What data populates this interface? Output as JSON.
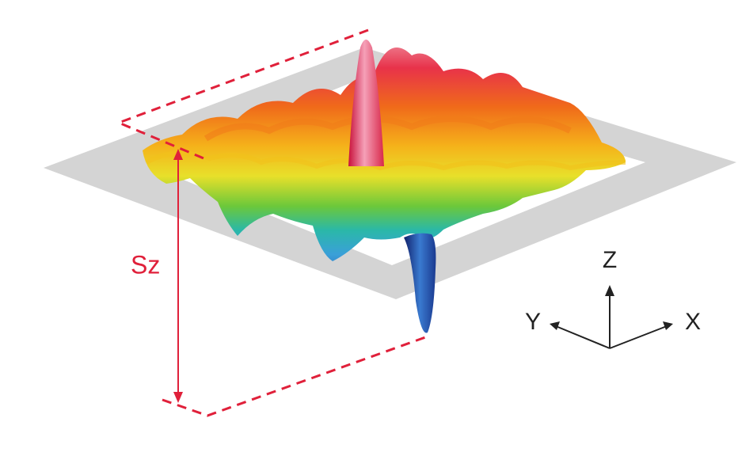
{
  "annotation": {
    "label": "Sz"
  },
  "axes": {
    "z": "Z",
    "y": "Y",
    "x": "X"
  }
}
